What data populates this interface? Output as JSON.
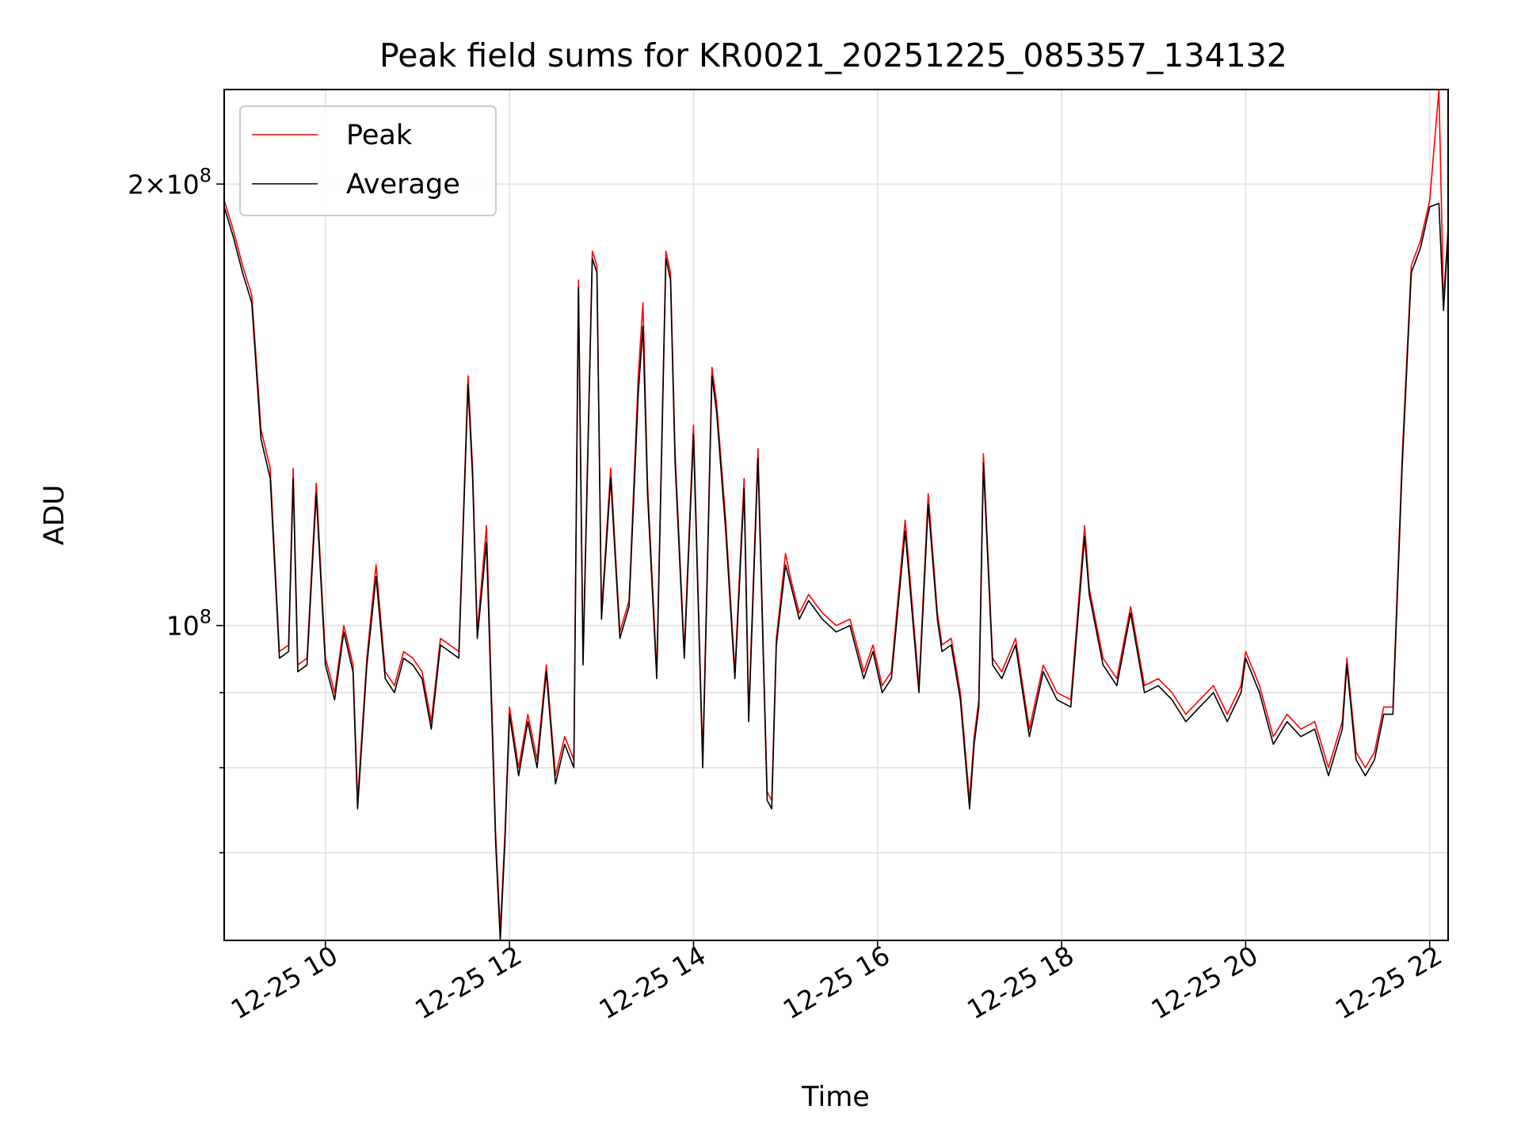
{
  "chart_data": {
    "type": "line",
    "title": "Peak field sums for KR0021_20251225_085357_134132",
    "xlabel": "Time",
    "ylabel": "ADU",
    "yscale": "log",
    "grid": true,
    "legend_position": "top-left",
    "x_unit": "hours since 12-25 00:00",
    "xlim": [
      8.9,
      22.2
    ],
    "ylim": [
      61000000,
      232000000
    ],
    "x_ticks": [
      {
        "value": 10,
        "label": "12-25 10"
      },
      {
        "value": 12,
        "label": "12-25 12"
      },
      {
        "value": 14,
        "label": "12-25 14"
      },
      {
        "value": 16,
        "label": "12-25 16"
      },
      {
        "value": 18,
        "label": "12-25 18"
      },
      {
        "value": 20,
        "label": "12-25 20"
      },
      {
        "value": 22,
        "label": "12-25 22"
      }
    ],
    "y_major_ticks": [
      {
        "value": 100000000,
        "mantissa": "",
        "exponent": "8"
      },
      {
        "value": 200000000,
        "mantissa": "2",
        "exponent": "8"
      }
    ],
    "y_minor_ticks": [
      70000000,
      80000000,
      90000000
    ],
    "x": [
      8.9,
      9.0,
      9.1,
      9.2,
      9.3,
      9.4,
      9.5,
      9.6,
      9.65,
      9.7,
      9.8,
      9.9,
      10.0,
      10.1,
      10.2,
      10.3,
      10.35,
      10.45,
      10.55,
      10.65,
      10.75,
      10.85,
      10.95,
      11.05,
      11.15,
      11.25,
      11.35,
      11.45,
      11.55,
      11.6,
      11.65,
      11.75,
      11.85,
      11.9,
      11.95,
      12.0,
      12.1,
      12.2,
      12.3,
      12.4,
      12.5,
      12.6,
      12.7,
      12.75,
      12.8,
      12.9,
      12.95,
      13.0,
      13.1,
      13.2,
      13.3,
      13.4,
      13.45,
      13.5,
      13.6,
      13.7,
      13.75,
      13.8,
      13.9,
      14.0,
      14.1,
      14.2,
      14.25,
      14.35,
      14.45,
      14.55,
      14.6,
      14.7,
      14.8,
      14.85,
      14.9,
      15.0,
      15.05,
      15.15,
      15.25,
      15.4,
      15.55,
      15.7,
      15.85,
      15.95,
      16.05,
      16.15,
      16.3,
      16.45,
      16.55,
      16.65,
      16.7,
      16.8,
      16.9,
      17.0,
      17.05,
      17.1,
      17.15,
      17.25,
      17.35,
      17.5,
      17.65,
      17.8,
      17.95,
      18.1,
      18.25,
      18.3,
      18.45,
      18.6,
      18.75,
      18.9,
      19.05,
      19.2,
      19.35,
      19.5,
      19.65,
      19.8,
      19.95,
      20.0,
      20.15,
      20.3,
      20.45,
      20.6,
      20.75,
      20.9,
      21.05,
      21.1,
      21.2,
      21.3,
      21.4,
      21.5,
      21.6,
      21.7,
      21.8,
      21.9,
      22.0,
      22.1,
      22.15,
      22.2
    ],
    "series": [
      {
        "name": "Peak",
        "color": "#ff0000",
        "values": [
          195000000,
          186000000,
          176000000,
          168000000,
          136000000,
          128000000,
          96000000,
          97000000,
          128000000,
          94000000,
          95000000,
          125000000,
          95000000,
          90000000,
          100000000,
          94000000,
          76000000,
          95000000,
          110000000,
          93000000,
          91000000,
          96000000,
          95000000,
          93000000,
          86000000,
          98000000,
          97000000,
          96000000,
          148000000,
          128000000,
          99000000,
          117000000,
          72000000,
          62000000,
          72000000,
          88000000,
          80000000,
          87000000,
          81000000,
          94000000,
          79000000,
          84000000,
          81000000,
          172000000,
          95000000,
          180000000,
          176000000,
          102000000,
          128000000,
          99000000,
          104000000,
          148000000,
          166000000,
          125000000,
          93000000,
          180000000,
          174000000,
          131000000,
          96000000,
          137000000,
          81000000,
          150000000,
          142000000,
          118000000,
          93000000,
          126000000,
          87000000,
          132000000,
          77000000,
          76000000,
          98000000,
          112000000,
          108000000,
          102000000,
          105000000,
          102000000,
          100000000,
          101000000,
          93000000,
          97000000,
          91000000,
          93000000,
          118000000,
          91000000,
          123000000,
          102000000,
          97000000,
          98000000,
          90000000,
          76000000,
          84000000,
          89000000,
          131000000,
          95000000,
          93000000,
          98000000,
          85000000,
          94000000,
          90000000,
          89000000,
          117000000,
          106000000,
          95000000,
          92000000,
          103000000,
          91000000,
          92000000,
          90000000,
          87000000,
          89000000,
          91000000,
          87000000,
          91000000,
          96000000,
          91000000,
          84000000,
          87000000,
          85000000,
          86000000,
          80000000,
          86000000,
          95000000,
          82000000,
          80000000,
          82000000,
          88000000,
          88000000,
          130000000,
          176000000,
          183000000,
          195000000,
          232000000,
          166000000,
          187000000
        ]
      },
      {
        "name": "Average",
        "color": "#000000",
        "values": [
          193000000,
          184000000,
          174000000,
          166000000,
          134000000,
          126000000,
          95000000,
          96000000,
          126000000,
          93000000,
          94000000,
          123000000,
          94000000,
          89000000,
          99000000,
          93000000,
          75000000,
          94000000,
          108000000,
          92000000,
          90000000,
          95000000,
          94000000,
          92000000,
          85000000,
          97000000,
          96000000,
          95000000,
          146000000,
          126000000,
          98000000,
          114000000,
          71000000,
          61000000,
          71000000,
          87000000,
          79000000,
          86000000,
          80000000,
          93000000,
          78000000,
          83000000,
          80000000,
          170000000,
          94000000,
          178000000,
          174000000,
          101000000,
          126000000,
          98000000,
          103000000,
          144000000,
          160000000,
          123000000,
          92000000,
          178000000,
          172000000,
          129000000,
          95000000,
          135000000,
          80000000,
          148000000,
          140000000,
          116000000,
          92000000,
          124000000,
          86000000,
          130000000,
          76000000,
          75000000,
          97000000,
          110000000,
          107000000,
          101000000,
          104000000,
          101000000,
          99000000,
          100000000,
          92000000,
          96000000,
          90000000,
          92000000,
          116000000,
          90000000,
          121000000,
          101000000,
          96000000,
          97000000,
          89000000,
          75000000,
          83000000,
          88000000,
          129000000,
          94000000,
          92000000,
          97000000,
          84000000,
          93000000,
          89000000,
          88000000,
          115000000,
          105000000,
          94000000,
          91000000,
          102000000,
          90000000,
          91000000,
          89000000,
          86000000,
          88000000,
          90000000,
          86000000,
          90000000,
          95000000,
          90000000,
          83000000,
          86000000,
          84000000,
          85000000,
          79000000,
          85000000,
          94000000,
          81000000,
          79000000,
          81000000,
          87000000,
          87000000,
          128000000,
          174000000,
          181000000,
          193000000,
          194000000,
          164000000,
          185000000
        ]
      }
    ]
  }
}
